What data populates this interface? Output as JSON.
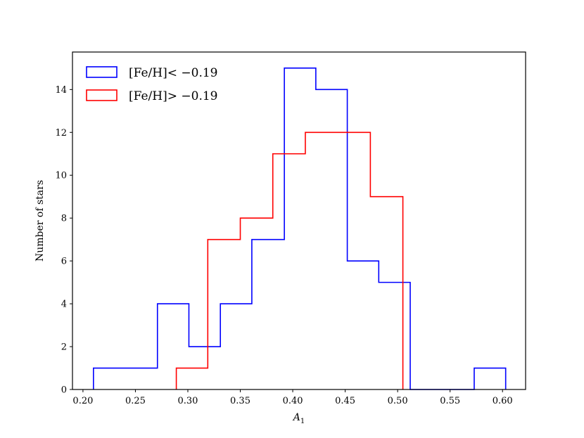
{
  "chart_data": {
    "type": "histogram",
    "xlabel": "A",
    "xlabel_subscript": "1",
    "ylabel": "Number of stars",
    "xlim": [
      0.19,
      0.622
    ],
    "ylim": [
      0,
      15.75
    ],
    "xticks": [
      0.2,
      0.25,
      0.3,
      0.35,
      0.4,
      0.45,
      0.5,
      0.55,
      0.6
    ],
    "xtick_labels": [
      "0.20",
      "0.25",
      "0.30",
      "0.35",
      "0.40",
      "0.45",
      "0.50",
      "0.55",
      "0.60"
    ],
    "yticks": [
      0,
      2,
      4,
      6,
      8,
      10,
      12,
      14
    ],
    "ytick_labels": [
      "0",
      "2",
      "4",
      "6",
      "8",
      "10",
      "12",
      "14"
    ],
    "grid": false,
    "legend_position": "top-left",
    "series": [
      {
        "name": "[Fe/H]< −0.19",
        "color": "#0000ff",
        "bin_edges": [
          0.21,
          0.241,
          0.271,
          0.301,
          0.331,
          0.361,
          0.392,
          0.422,
          0.452,
          0.482,
          0.512,
          0.543,
          0.573,
          0.603
        ],
        "counts": [
          1,
          1,
          4,
          2,
          4,
          7,
          15,
          14,
          6,
          5,
          0,
          0,
          1
        ]
      },
      {
        "name": "[Fe/H]> −0.19",
        "color": "#ff0000",
        "bin_edges": [
          0.289,
          0.319,
          0.35,
          0.381,
          0.412,
          0.443,
          0.474,
          0.505
        ],
        "counts": [
          1,
          7,
          8,
          11,
          12,
          12,
          9
        ]
      }
    ]
  }
}
